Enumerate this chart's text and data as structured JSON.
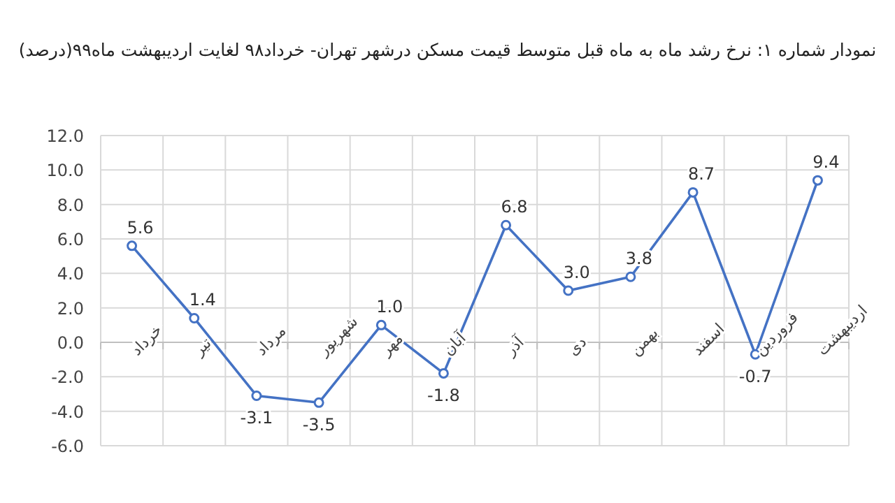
{
  "chart_data": {
    "type": "line",
    "title": "نمودار شماره ۱: نرخ رشد ماه به ماه قبل متوسط قیمت مسکن درشهر تهران- خرداد۹۸ لغایت اردیبهشت ماه۹۹(درصد)",
    "categories": [
      "خرداد",
      "تیر",
      "مرداد",
      "شهریور",
      "مهر",
      "آبان",
      "آذر",
      "دی",
      "بهمن",
      "اسفند",
      "فروردین",
      "اردیبهشت"
    ],
    "values": [
      5.6,
      1.4,
      -3.1,
      -3.5,
      1.0,
      -1.8,
      6.8,
      3.0,
      3.8,
      8.7,
      -0.7,
      9.4
    ],
    "value_labels": [
      "5.6",
      "1.4",
      "-3.1",
      "-3.5",
      "1.0",
      "-1.8",
      "6.8",
      "3.0",
      "3.8",
      "8.7",
      "-0.7",
      "9.4"
    ],
    "color": "#4472c4",
    "marker": "circle",
    "grid": true,
    "ylim": [
      -6,
      12
    ],
    "yticks": [
      {
        "value": -6,
        "label": "-6.0"
      },
      {
        "value": -4,
        "label": "-4.0"
      },
      {
        "value": -2,
        "label": "-2.0"
      },
      {
        "value": 0,
        "label": "0.0"
      },
      {
        "value": 2,
        "label": "2.0"
      },
      {
        "value": 4,
        "label": "4.0"
      },
      {
        "value": 6,
        "label": "6.0"
      },
      {
        "value": 8,
        "label": "8.0"
      },
      {
        "value": 10,
        "label": "10.0"
      },
      {
        "value": 12,
        "label": "12.0"
      }
    ]
  }
}
